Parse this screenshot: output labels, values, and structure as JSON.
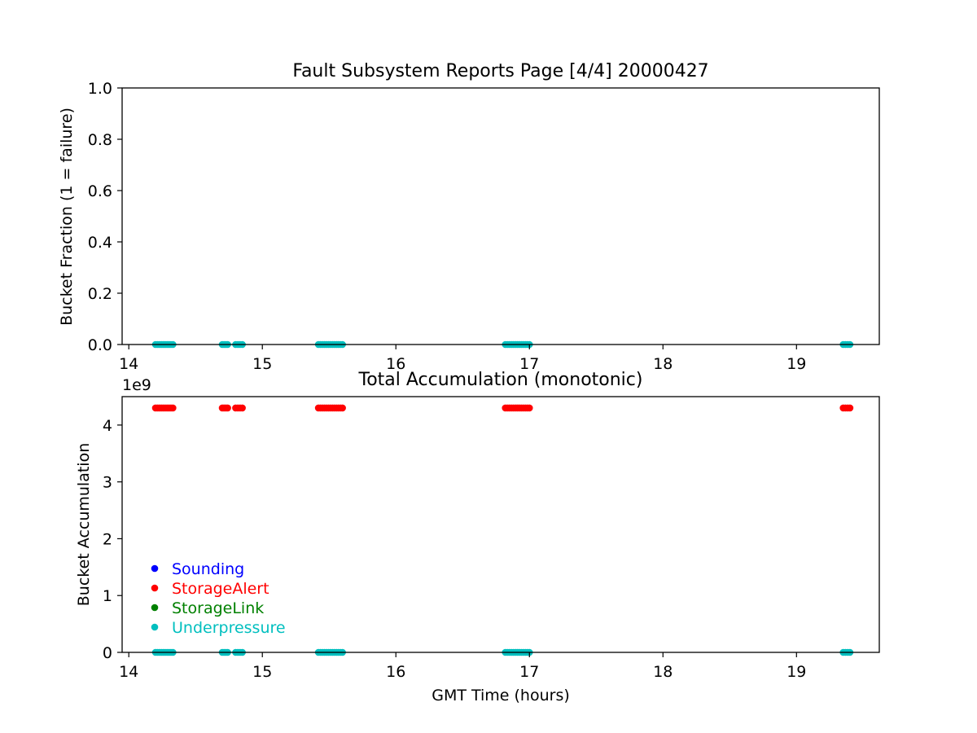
{
  "chart_data": [
    {
      "type": "scatter",
      "title": "Fault Subsystem Reports Page [4/4] 20000427",
      "xlabel": "",
      "ylabel": "Bucket Fraction (1 = failure)",
      "xlim": [
        13.95,
        19.62
      ],
      "ylim": [
        0,
        1
      ],
      "xticks": [
        "14",
        "15",
        "16",
        "17",
        "18",
        "19"
      ],
      "yticks": [
        "0.0",
        "0.2",
        "0.4",
        "0.6",
        "0.8",
        "1.0"
      ],
      "grid": false,
      "series": [
        {
          "name": "Sounding",
          "color": "#0000ff",
          "points": []
        },
        {
          "name": "StorageAlert",
          "color": "#ff0000",
          "points": []
        },
        {
          "name": "StorageLink",
          "color": "#008000",
          "points": []
        },
        {
          "name": "Underpressure",
          "color": "#00bfbf",
          "points": [
            {
              "x": [
                14.2,
                14.33
              ],
              "y": 0
            },
            {
              "x": [
                14.7,
                14.74
              ],
              "y": 0
            },
            {
              "x": [
                14.8,
                14.85
              ],
              "y": 0
            },
            {
              "x": [
                15.42,
                15.6
              ],
              "y": 0
            },
            {
              "x": [
                16.82,
                17.0
              ],
              "y": 0
            },
            {
              "x": [
                19.35,
                19.4
              ],
              "y": 0
            }
          ]
        }
      ]
    },
    {
      "type": "scatter",
      "title": "Total Accumulation (monotonic)",
      "xlabel": "GMT Time (hours)",
      "ylabel": "Bucket Accumulation",
      "y_offset_label": "1e9",
      "xlim": [
        13.95,
        19.62
      ],
      "ylim": [
        0,
        4.5
      ],
      "xticks": [
        "14",
        "15",
        "16",
        "17",
        "18",
        "19"
      ],
      "yticks": [
        "0",
        "1",
        "2",
        "3",
        "4"
      ],
      "grid": false,
      "legend_placement": "lower-left",
      "series": [
        {
          "name": "Sounding",
          "color": "#0000ff",
          "points": []
        },
        {
          "name": "StorageAlert",
          "color": "#ff0000",
          "points": [
            {
              "x": [
                14.2,
                14.33
              ],
              "y": 4.3
            },
            {
              "x": [
                14.7,
                14.74
              ],
              "y": 4.3
            },
            {
              "x": [
                14.8,
                14.85
              ],
              "y": 4.3
            },
            {
              "x": [
                15.42,
                15.6
              ],
              "y": 4.3
            },
            {
              "x": [
                16.82,
                17.0
              ],
              "y": 4.3
            },
            {
              "x": [
                19.35,
                19.4
              ],
              "y": 4.3
            }
          ]
        },
        {
          "name": "StorageLink",
          "color": "#008000",
          "points": []
        },
        {
          "name": "Underpressure",
          "color": "#00bfbf",
          "points": [
            {
              "x": [
                14.2,
                14.33
              ],
              "y": 0
            },
            {
              "x": [
                14.7,
                14.74
              ],
              "y": 0
            },
            {
              "x": [
                14.8,
                14.85
              ],
              "y": 0
            },
            {
              "x": [
                15.42,
                15.6
              ],
              "y": 0
            },
            {
              "x": [
                16.82,
                17.0
              ],
              "y": 0
            },
            {
              "x": [
                19.35,
                19.4
              ],
              "y": 0
            }
          ]
        }
      ]
    }
  ]
}
